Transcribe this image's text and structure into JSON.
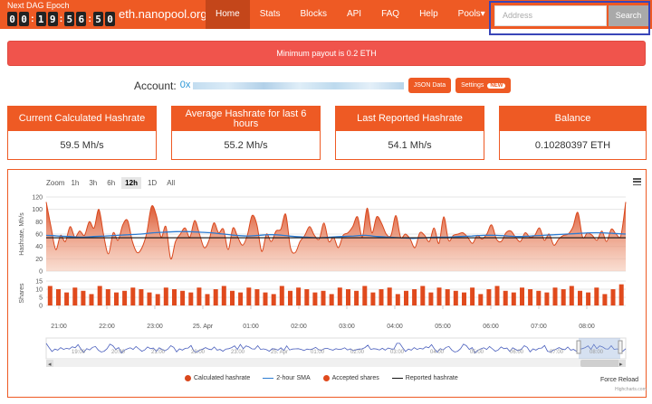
{
  "navbar": {
    "dag_title": "Next DAG Epoch",
    "dag_digits": [
      "0",
      "0",
      "1",
      "9",
      "5",
      "6",
      "5",
      "0"
    ],
    "brand": "eth.nanopool.org",
    "items": [
      {
        "label": "Home",
        "active": true
      },
      {
        "label": "Stats",
        "active": false
      },
      {
        "label": "Blocks",
        "active": false
      },
      {
        "label": "API",
        "active": false
      },
      {
        "label": "FAQ",
        "active": false
      },
      {
        "label": "Help",
        "active": false
      },
      {
        "label": "Pools▾",
        "active": false
      }
    ],
    "search_placeholder": "Address",
    "search_button": "Search"
  },
  "alert": "Minimum payout is 0.2 ETH",
  "account": {
    "label": "Account:",
    "address_prefix": "0x",
    "json_button": "JSON Data",
    "settings_button": "Settings",
    "new_badge": "NEW"
  },
  "cards": [
    {
      "title": "Current Calculated Hashrate",
      "value": "59.5 Mh/s"
    },
    {
      "title": "Average Hashrate for last 6 hours",
      "value": "55.2 Mh/s"
    },
    {
      "title": "Last Reported Hashrate",
      "value": "54.1 Mh/s"
    },
    {
      "title": "Balance",
      "value": "0.10280397 ETH"
    }
  ],
  "chart": {
    "zoom_label": "Zoom",
    "zoom_options": [
      {
        "label": "1h",
        "active": false
      },
      {
        "label": "3h",
        "active": false
      },
      {
        "label": "6h",
        "active": false
      },
      {
        "label": "12h",
        "active": true
      },
      {
        "label": "1D",
        "active": false
      },
      {
        "label": "All",
        "active": false
      }
    ],
    "legend": [
      "Calculated hashrate",
      "2-hour SMA",
      "Accepted shares",
      "Reported hashrate"
    ],
    "force_reload": "Force Reload",
    "credit": "Highcharts.com",
    "colors": {
      "hashrate": "#d9471c",
      "sma": "#2b7bd2",
      "reported": "#111111",
      "shares": "#e04a1d"
    }
  },
  "chart_data": {
    "type": "area",
    "ylabel_top": "Hashrate, Mh/s",
    "ylabel_bottom": "Shares",
    "y_ticks_top": [
      "120",
      "100",
      "80",
      "60",
      "40",
      "20",
      "0"
    ],
    "y_ticks_bottom": [
      "15",
      "10",
      "5",
      "0"
    ],
    "x_ticks": [
      "21:00",
      "22:00",
      "23:00",
      "25. Apr",
      "01:00",
      "02:00",
      "03:00",
      "04:00",
      "05:00",
      "06:00",
      "07:00",
      "08:00"
    ],
    "navigator_ticks": [
      "19:00",
      "20:00",
      "21:00",
      "22:00",
      "23:00",
      "25. Apr",
      "01:00",
      "02:00",
      "03:00",
      "04:00",
      "05:00",
      "06:00",
      "07:00",
      "08:00"
    ],
    "ylim_top": [
      0,
      120
    ],
    "ylim_bottom": [
      0,
      15
    ],
    "series": [
      {
        "name": "Calculated hashrate",
        "values": [
          112,
          72,
          35,
          58,
          48,
          72,
          55,
          65,
          58,
          80,
          70,
          100,
          58,
          28,
          62,
          50,
          75,
          82,
          48,
          30,
          38,
          62,
          105,
          90,
          55,
          72,
          20,
          48,
          60,
          70,
          55,
          82,
          60,
          38,
          50,
          78,
          62,
          68,
          35,
          70,
          55,
          42,
          58,
          90,
          75,
          32,
          60,
          48,
          65,
          68,
          92,
          38,
          30,
          48,
          58,
          72,
          58,
          52,
          78,
          48,
          55,
          38,
          58,
          62,
          72,
          88,
          55,
          102,
          62,
          88,
          78,
          60,
          58,
          90,
          55,
          60,
          52,
          38,
          62,
          58,
          48,
          70,
          45,
          88,
          50,
          58,
          60,
          62,
          55,
          45,
          58,
          52,
          60,
          75,
          52,
          48,
          62,
          65,
          55,
          48,
          62,
          55,
          58,
          70,
          50,
          60,
          42,
          52,
          58,
          60,
          72,
          95,
          55,
          62,
          58,
          50,
          65,
          48,
          68,
          60,
          58,
          112
        ]
      },
      {
        "name": "2-hour SMA",
        "values": [
          58,
          57,
          56,
          55,
          56,
          57,
          58,
          59,
          60,
          62,
          63,
          64,
          64,
          63,
          62,
          60,
          58,
          57,
          58,
          59,
          58,
          56,
          55,
          54,
          55,
          56,
          57,
          58,
          56,
          55,
          54,
          53,
          54,
          55,
          55,
          56,
          57,
          58,
          58,
          57,
          56,
          57,
          58,
          59,
          60,
          61,
          62,
          62,
          61,
          60
        ]
      },
      {
        "name": "Reported hashrate",
        "values": [
          54,
          54,
          54,
          54,
          54,
          54,
          54,
          54,
          54,
          54
        ]
      },
      {
        "name": "Accepted shares",
        "values": [
          12,
          10,
          8,
          11,
          9,
          7,
          12,
          10,
          8,
          9,
          11,
          10,
          8,
          7,
          11,
          10,
          9,
          8,
          11,
          7,
          10,
          12,
          9,
          8,
          11,
          10,
          8,
          7,
          12,
          9,
          11,
          10,
          8,
          9,
          7,
          11,
          10,
          9,
          12,
          8,
          10,
          11,
          7,
          9,
          10,
          12,
          8,
          11,
          10,
          9,
          8,
          11,
          7,
          10,
          12,
          9,
          8,
          11,
          10,
          9,
          8,
          11,
          10,
          12,
          9,
          8,
          11,
          7,
          10,
          13
        ]
      }
    ]
  }
}
